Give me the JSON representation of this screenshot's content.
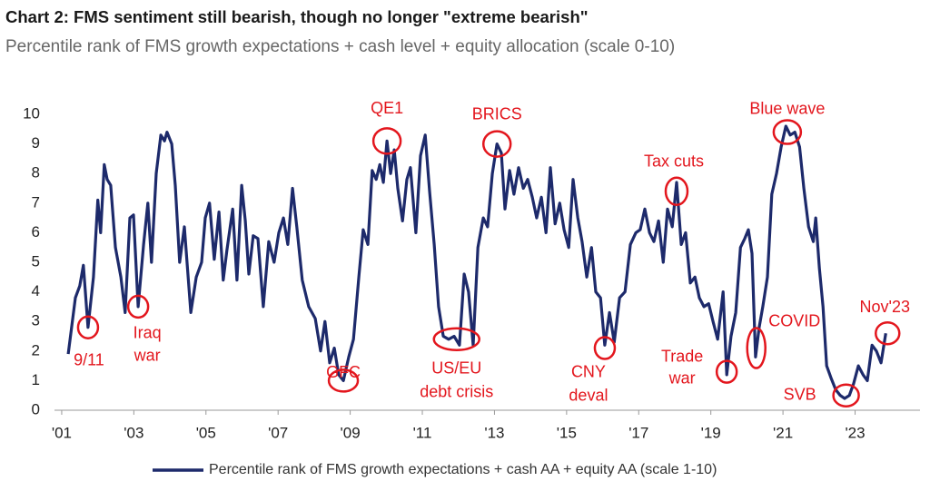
{
  "chart_data": {
    "type": "line",
    "title": "Chart 2: FMS sentiment still bearish, though no longer \"extreme bearish\"",
    "subtitle": "Percentile rank of FMS growth expectations + cash level + equity allocation (scale 0-10)",
    "x": [
      2001.18,
      2001.38,
      2001.5,
      2001.6,
      2001.73,
      2001.88,
      2002.0,
      2002.08,
      2002.18,
      2002.26,
      2002.36,
      2002.49,
      2002.64,
      2002.76,
      2002.89,
      2002.99,
      2003.12,
      2003.27,
      2003.39,
      2003.49,
      2003.62,
      2003.75,
      2003.85,
      2003.92,
      2004.05,
      2004.15,
      2004.27,
      2004.4,
      2004.58,
      2004.73,
      2004.88,
      2004.98,
      2005.1,
      2005.23,
      2005.36,
      2005.48,
      2005.58,
      2005.74,
      2005.86,
      2005.99,
      2006.09,
      2006.19,
      2006.31,
      2006.44,
      2006.59,
      2006.74,
      2006.89,
      2007.02,
      2007.15,
      2007.27,
      2007.4,
      2007.52,
      2007.67,
      2007.85,
      2008.03,
      2008.18,
      2008.3,
      2008.43,
      2008.56,
      2008.68,
      2008.81,
      2008.96,
      2009.09,
      2009.24,
      2009.36,
      2009.49,
      2009.61,
      2009.72,
      2009.82,
      2009.92,
      2010.02,
      2010.12,
      2010.22,
      2010.32,
      2010.45,
      2010.57,
      2010.67,
      2010.82,
      2010.95,
      2011.08,
      2011.2,
      2011.33,
      2011.45,
      2011.58,
      2011.73,
      2011.88,
      2012.03,
      2012.16,
      2012.28,
      2012.41,
      2012.54,
      2012.69,
      2012.81,
      2012.94,
      2013.07,
      2013.19,
      2013.29,
      2013.42,
      2013.54,
      2013.67,
      2013.8,
      2013.92,
      2014.05,
      2014.17,
      2014.3,
      2014.43,
      2014.55,
      2014.68,
      2014.81,
      2014.93,
      2015.06,
      2015.18,
      2015.31,
      2015.43,
      2015.56,
      2015.69,
      2015.81,
      2015.94,
      2016.06,
      2016.19,
      2016.32,
      2016.47,
      2016.62,
      2016.77,
      2016.92,
      2017.04,
      2017.17,
      2017.3,
      2017.42,
      2017.55,
      2017.68,
      2017.8,
      2017.93,
      2018.05,
      2018.18,
      2018.3,
      2018.43,
      2018.56,
      2018.68,
      2018.81,
      2018.94,
      2019.06,
      2019.19,
      2019.34,
      2019.44,
      2019.56,
      2019.69,
      2019.82,
      2019.94,
      2020.04,
      2020.14,
      2020.24,
      2020.34,
      2020.44,
      2020.57,
      2020.69,
      2020.82,
      2020.95,
      2021.08,
      2021.2,
      2021.33,
      2021.46,
      2021.58,
      2021.71,
      2021.84,
      2021.91,
      2022.01,
      2022.11,
      2022.21,
      2022.33,
      2022.46,
      2022.59,
      2022.71,
      2022.84,
      2022.96,
      2023.09,
      2023.22,
      2023.34,
      2023.47,
      2023.59,
      2023.72,
      2023.85
    ],
    "series": [
      {
        "name": "Percentile rank of FMS growth expectations + cash AA + equity AA (scale 1-10)",
        "color": "#1d2a6b",
        "values": [
          1.9,
          3.8,
          4.2,
          4.9,
          2.8,
          4.5,
          7.1,
          6.0,
          8.3,
          7.8,
          7.6,
          5.5,
          4.5,
          3.3,
          6.5,
          6.6,
          3.5,
          5.6,
          7.0,
          5.0,
          8.0,
          9.3,
          9.1,
          9.4,
          9.0,
          7.6,
          5.0,
          6.2,
          3.3,
          4.5,
          5.0,
          6.5,
          7.0,
          5.1,
          6.7,
          4.4,
          5.4,
          6.8,
          4.4,
          7.6,
          6.4,
          4.6,
          5.9,
          5.8,
          3.5,
          5.7,
          5.0,
          6.0,
          6.5,
          5.6,
          7.5,
          6.2,
          4.4,
          3.5,
          3.1,
          2.0,
          3.0,
          1.6,
          2.1,
          1.2,
          1.0,
          1.8,
          2.4,
          4.5,
          6.1,
          5.6,
          8.1,
          7.8,
          8.3,
          7.7,
          9.1,
          8.0,
          8.8,
          7.5,
          6.4,
          7.8,
          8.2,
          6.0,
          8.6,
          9.3,
          7.4,
          5.6,
          3.5,
          2.5,
          2.4,
          2.5,
          2.2,
          4.6,
          4.0,
          2.2,
          5.5,
          6.5,
          6.2,
          8.0,
          9.0,
          8.7,
          6.8,
          8.1,
          7.3,
          8.2,
          7.5,
          7.8,
          7.2,
          6.5,
          7.2,
          6.0,
          8.2,
          6.3,
          7.0,
          6.1,
          5.5,
          7.8,
          6.5,
          5.7,
          4.5,
          5.5,
          4.0,
          3.8,
          2.2,
          3.3,
          2.3,
          3.8,
          4.0,
          5.6,
          6.0,
          6.1,
          6.8,
          6.0,
          5.7,
          6.4,
          5.0,
          6.8,
          6.2,
          7.7,
          5.6,
          6.0,
          4.3,
          4.5,
          3.8,
          3.5,
          3.6,
          3.0,
          2.4,
          4.0,
          1.2,
          2.5,
          3.3,
          5.5,
          5.8,
          6.1,
          5.3,
          1.8,
          2.8,
          3.5,
          4.5,
          7.3,
          8.0,
          8.9,
          9.6,
          9.3,
          9.4,
          8.9,
          7.5,
          6.2,
          5.7,
          6.5,
          4.8,
          3.5,
          1.5,
          1.1,
          0.7,
          0.5,
          0.4,
          0.5,
          0.9,
          1.5,
          1.2,
          1.0,
          2.2,
          2.0,
          1.6,
          2.6
        ]
      }
    ],
    "xlim": [
      2000.8,
      2024.8
    ],
    "xticks": [
      {
        "value": 2001,
        "label": "'01"
      },
      {
        "value": 2003,
        "label": "'03"
      },
      {
        "value": 2005,
        "label": "'05"
      },
      {
        "value": 2007,
        "label": "'07"
      },
      {
        "value": 2009,
        "label": "'09"
      },
      {
        "value": 2011,
        "label": "'11"
      },
      {
        "value": 2013,
        "label": "'13"
      },
      {
        "value": 2015,
        "label": "'15"
      },
      {
        "value": 2017,
        "label": "'17"
      },
      {
        "value": 2019,
        "label": "'19"
      },
      {
        "value": 2021,
        "label": "'21"
      },
      {
        "value": 2023,
        "label": "'23"
      }
    ],
    "ylim": [
      0,
      10
    ],
    "yticks": [
      0,
      1,
      2,
      3,
      4,
      5,
      6,
      7,
      8,
      9,
      10
    ],
    "annotation_color": "#e3161d",
    "annotations": [
      {
        "text": [
          "9/11"
        ],
        "x": 2001.73,
        "y": 2.8
      },
      {
        "text": [
          "Iraq",
          "war"
        ],
        "x": 2003.12,
        "y": 3.5
      },
      {
        "text": [
          "GFC"
        ],
        "x": 2008.81,
        "y": 1.0
      },
      {
        "text": [
          "QE1"
        ],
        "x": 2010.02,
        "y": 9.1
      },
      {
        "text": [
          "US/EU",
          "debt crisis"
        ],
        "x": 2011.95,
        "y": 2.4
      },
      {
        "text": [
          "BRICS"
        ],
        "x": 2013.07,
        "y": 9.0
      },
      {
        "text": [
          "CNY",
          "deval"
        ],
        "x": 2016.06,
        "y": 2.1
      },
      {
        "text": [
          "Tax cuts"
        ],
        "x": 2018.05,
        "y": 7.4
      },
      {
        "text": [
          "Trade",
          "war"
        ],
        "x": 2019.44,
        "y": 1.3
      },
      {
        "text": [
          "COVID"
        ],
        "x": 2020.26,
        "y": 2.1
      },
      {
        "text": [
          "Blue wave"
        ],
        "x": 2021.12,
        "y": 9.4
      },
      {
        "text": [
          "SVB"
        ],
        "x": 2022.75,
        "y": 0.5
      },
      {
        "text": [
          "Nov'23"
        ],
        "x": 2023.9,
        "y": 2.6
      }
    ]
  }
}
